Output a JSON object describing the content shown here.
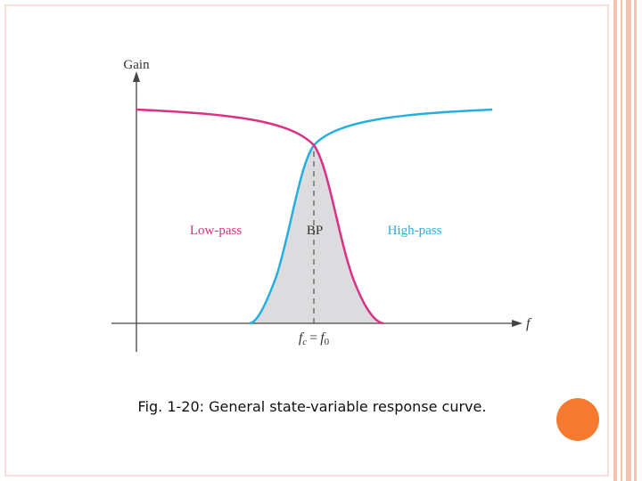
{
  "diagram": {
    "y_axis_label": "Gain",
    "x_axis_label": "f",
    "curves": {
      "low_pass": "Low-pass",
      "band_pass": "BP",
      "high_pass": "High-pass"
    },
    "cutoff_label": {
      "left": "f",
      "left_sub": "c",
      "sign": "=",
      "right": "f",
      "right_sub": "0"
    }
  },
  "caption": "Fig. 1-20: General state-variable response curve."
}
